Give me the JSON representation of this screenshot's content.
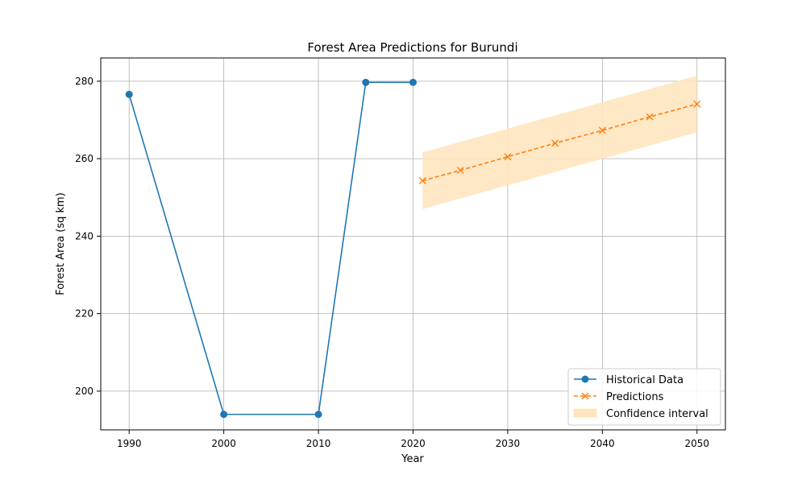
{
  "chart_data": {
    "type": "line",
    "title": "Forest Area Predictions for Burundi",
    "xlabel": "Year",
    "ylabel": "Forest Area (sq km)",
    "xlim": [
      1987,
      2053
    ],
    "ylim": [
      190,
      286
    ],
    "xticks": [
      1990,
      2000,
      2010,
      2020,
      2030,
      2040,
      2050
    ],
    "yticks": [
      200,
      220,
      240,
      260,
      280
    ],
    "grid": true,
    "legend_position": "lower-right",
    "series": [
      {
        "name": "Historical Data",
        "style": "solid-circle",
        "color": "#1f77b4",
        "x": [
          1990,
          2000,
          2010,
          2015,
          2020
        ],
        "y": [
          276.6,
          194.0,
          194.0,
          279.7,
          279.7
        ]
      },
      {
        "name": "Predictions",
        "style": "dashed-x",
        "color": "#ff7f0e",
        "x": [
          2021,
          2025,
          2030,
          2035,
          2040,
          2045,
          2050
        ],
        "y": [
          254.3,
          257.0,
          260.5,
          264.0,
          267.3,
          270.8,
          274.1
        ]
      }
    ],
    "confidence_interval": {
      "name": "Confidence interval",
      "color": "#ffe5bf",
      "x": [
        2021,
        2050
      ],
      "lower": [
        247.0,
        266.8
      ],
      "upper": [
        261.6,
        281.4
      ]
    }
  }
}
